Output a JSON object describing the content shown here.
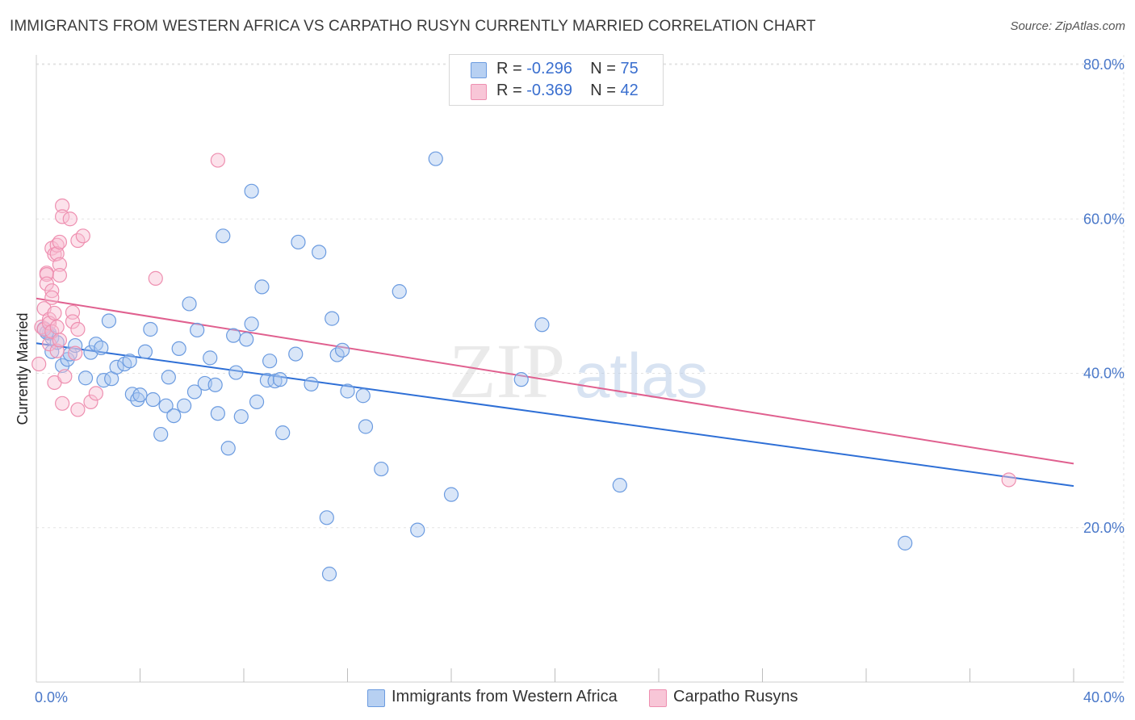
{
  "title": "IMMIGRANTS FROM WESTERN AFRICA VS CARPATHO RUSYN CURRENTLY MARRIED CORRELATION CHART",
  "source": "Source: ZipAtlas.com",
  "watermark": {
    "zip": "ZIP",
    "atlas": "atlas"
  },
  "legend": {
    "rows": [
      {
        "r_label": "R = ",
        "r_value": "-0.296",
        "n_label": "N = ",
        "n_value": "75"
      },
      {
        "r_label": "R = ",
        "r_value": "-0.369",
        "n_label": "N = ",
        "n_value": "42"
      }
    ]
  },
  "bottom_legend": [
    {
      "label": "Immigrants from Western Africa"
    },
    {
      "label": "Carpatho Rusyns"
    }
  ],
  "chart_data": {
    "type": "scatter",
    "title": "IMMIGRANTS FROM WESTERN AFRICA VS CARPATHO RUSYN CURRENTLY MARRIED CORRELATION CHART",
    "xlabel": "",
    "ylabel": "Currently Married",
    "xlim": [
      0,
      40
    ],
    "ylim": [
      0,
      85
    ],
    "x_ticks": [
      {
        "value": 0,
        "label": "0.0%"
      },
      {
        "value": 40,
        "label": "40.0%"
      }
    ],
    "y_ticks": [
      {
        "value": 20,
        "label": "20.0%"
      },
      {
        "value": 40,
        "label": "40.0%"
      },
      {
        "value": 60,
        "label": "60.0%"
      },
      {
        "value": 80,
        "label": "80.0%"
      }
    ],
    "grid": true,
    "legend_position": "top-center",
    "colors": {
      "blue_fill": "#aac8f0",
      "blue_stroke": "#6b9be0",
      "blue_line": "#2e6fd6",
      "pink_fill": "#f8bfd2",
      "pink_stroke": "#ee8fb0",
      "pink_line": "#e0608f"
    },
    "series": [
      {
        "name": "Immigrants from Western Africa",
        "color": "blue",
        "trend": {
          "x": [
            0,
            40
          ],
          "y": [
            43.9,
            25.4
          ]
        },
        "points": [
          [
            0.3,
            45.8
          ],
          [
            0.5,
            45.2
          ],
          [
            0.6,
            44.6
          ],
          [
            0.6,
            42.8
          ],
          [
            0.8,
            44.0
          ],
          [
            1.0,
            41.0
          ],
          [
            1.2,
            41.8
          ],
          [
            1.3,
            42.5
          ],
          [
            1.5,
            43.6
          ],
          [
            1.9,
            39.4
          ],
          [
            2.1,
            42.7
          ],
          [
            2.3,
            43.8
          ],
          [
            2.5,
            43.3
          ],
          [
            2.6,
            39.1
          ],
          [
            2.9,
            39.3
          ],
          [
            2.8,
            46.8
          ],
          [
            3.1,
            40.8
          ],
          [
            3.4,
            41.2
          ],
          [
            3.6,
            41.6
          ],
          [
            3.7,
            37.3
          ],
          [
            3.9,
            36.6
          ],
          [
            4.0,
            37.2
          ],
          [
            4.2,
            42.8
          ],
          [
            4.4,
            45.7
          ],
          [
            4.5,
            36.6
          ],
          [
            4.8,
            32.1
          ],
          [
            5.0,
            35.8
          ],
          [
            5.1,
            39.5
          ],
          [
            5.3,
            34.5
          ],
          [
            5.5,
            43.2
          ],
          [
            5.7,
            35.8
          ],
          [
            5.9,
            49.0
          ],
          [
            6.1,
            37.6
          ],
          [
            6.2,
            45.6
          ],
          [
            6.5,
            38.7
          ],
          [
            6.7,
            42.0
          ],
          [
            6.9,
            38.5
          ],
          [
            7.0,
            34.8
          ],
          [
            7.2,
            57.8
          ],
          [
            7.4,
            30.3
          ],
          [
            7.6,
            44.9
          ],
          [
            7.7,
            40.1
          ],
          [
            7.9,
            34.4
          ],
          [
            8.1,
            44.4
          ],
          [
            8.3,
            46.4
          ],
          [
            8.5,
            36.3
          ],
          [
            8.7,
            51.2
          ],
          [
            8.9,
            39.1
          ],
          [
            9.0,
            41.6
          ],
          [
            9.2,
            39.0
          ],
          [
            9.4,
            39.2
          ],
          [
            9.5,
            32.3
          ],
          [
            10.0,
            42.5
          ],
          [
            10.6,
            38.6
          ],
          [
            11.2,
            21.3
          ],
          [
            11.3,
            14.0
          ],
          [
            11.4,
            47.1
          ],
          [
            11.6,
            42.4
          ],
          [
            11.8,
            43.0
          ],
          [
            12.0,
            37.7
          ],
          [
            12.6,
            37.1
          ],
          [
            12.7,
            33.1
          ],
          [
            13.3,
            27.6
          ],
          [
            14.0,
            50.6
          ],
          [
            14.7,
            19.7
          ],
          [
            15.4,
            67.8
          ],
          [
            16.0,
            24.3
          ],
          [
            18.7,
            39.2
          ],
          [
            19.5,
            46.3
          ],
          [
            22.5,
            25.5
          ],
          [
            8.3,
            63.6
          ],
          [
            10.1,
            57.0
          ],
          [
            10.9,
            55.7
          ],
          [
            33.5,
            18.0
          ],
          [
            0.4,
            45.3
          ]
        ]
      },
      {
        "name": "Carpatho Rusyns",
        "color": "pink",
        "trend": {
          "x": [
            0,
            40
          ],
          "y": [
            49.7,
            28.3
          ]
        },
        "points": [
          [
            0.1,
            41.2
          ],
          [
            0.2,
            46.0
          ],
          [
            0.3,
            48.4
          ],
          [
            0.3,
            45.7
          ],
          [
            0.4,
            53.0
          ],
          [
            0.4,
            52.8
          ],
          [
            0.4,
            51.6
          ],
          [
            0.5,
            47.0
          ],
          [
            0.5,
            46.5
          ],
          [
            0.5,
            43.8
          ],
          [
            0.6,
            56.2
          ],
          [
            0.6,
            50.7
          ],
          [
            0.6,
            49.8
          ],
          [
            0.6,
            45.4
          ],
          [
            0.7,
            55.4
          ],
          [
            0.7,
            47.8
          ],
          [
            0.7,
            38.8
          ],
          [
            0.8,
            56.6
          ],
          [
            0.8,
            55.5
          ],
          [
            0.8,
            46.0
          ],
          [
            0.8,
            42.9
          ],
          [
            0.9,
            57.0
          ],
          [
            0.9,
            54.1
          ],
          [
            0.9,
            52.7
          ],
          [
            0.9,
            44.3
          ],
          [
            1.0,
            61.7
          ],
          [
            1.0,
            60.3
          ],
          [
            1.0,
            36.1
          ],
          [
            1.1,
            39.6
          ],
          [
            1.3,
            60.0
          ],
          [
            1.4,
            47.9
          ],
          [
            1.4,
            46.7
          ],
          [
            1.5,
            42.6
          ],
          [
            1.6,
            57.2
          ],
          [
            1.6,
            45.7
          ],
          [
            1.6,
            35.3
          ],
          [
            1.8,
            57.8
          ],
          [
            2.1,
            36.3
          ],
          [
            2.3,
            37.4
          ],
          [
            4.6,
            52.3
          ],
          [
            7.0,
            67.6
          ],
          [
            37.5,
            26.2
          ]
        ]
      }
    ]
  }
}
